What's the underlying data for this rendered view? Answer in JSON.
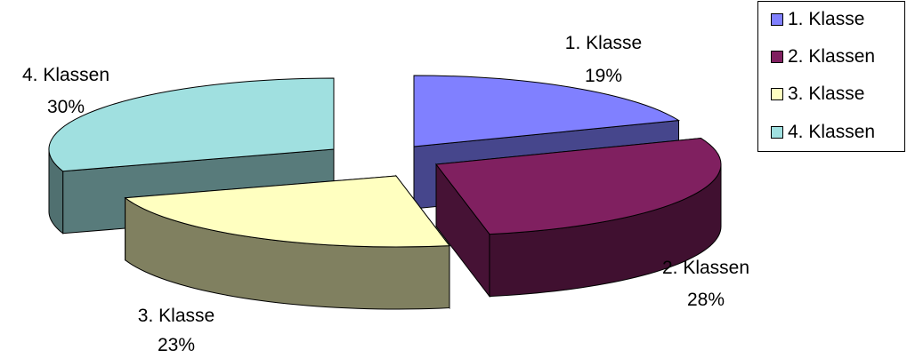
{
  "chart_data": {
    "type": "pie",
    "variant": "3d-exploded",
    "categories": [
      "1. Klasse",
      "2. Klassen",
      "3. Klasse",
      "4. Klassen"
    ],
    "values": [
      19,
      28,
      23,
      30
    ],
    "percent_labels": [
      "19%",
      "28%",
      "23%",
      "30%"
    ],
    "colors": [
      "#8080FF",
      "#802060",
      "#FFFFC0",
      "#A0E0E0"
    ],
    "legend": {
      "position": "top-right",
      "entries": [
        "1. Klasse",
        "2. Klassen",
        "3. Klasse",
        "4. Klassen"
      ]
    }
  }
}
